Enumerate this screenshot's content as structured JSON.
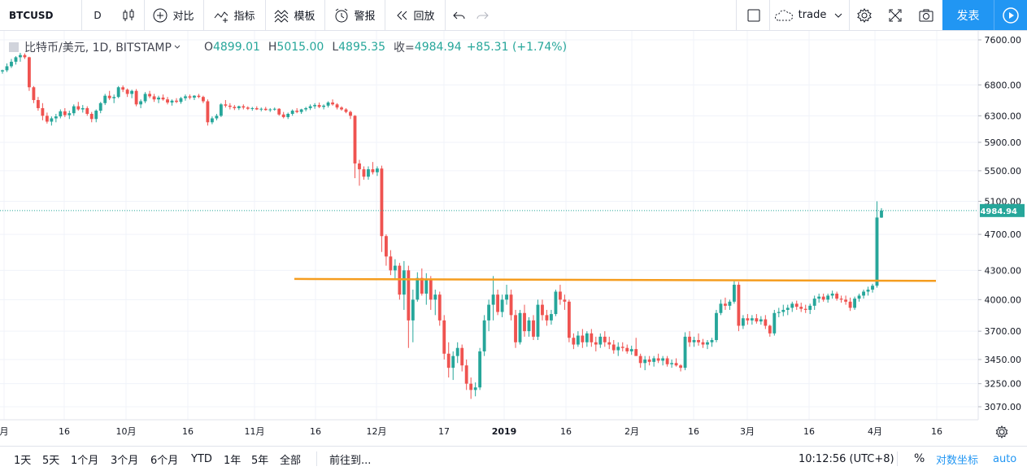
{
  "toolbar": {
    "symbol": "BTCUSD",
    "interval": "D",
    "compare_label": "对比",
    "indicators_label": "指标",
    "templates_label": "模板",
    "alert_label": "警报",
    "replay_label": "回放",
    "layout_name": "trade",
    "publish_label": "发表"
  },
  "legend": {
    "title": "比特币/美元, 1D, BITSTAMP",
    "o_label": "O",
    "o_value": "4899.01",
    "h_label": "H",
    "h_value": "5015.00",
    "l_label": "L",
    "l_value": "4895.35",
    "c_label": "收=",
    "c_value": "4984.94",
    "change": "+85.31 (+1.74%)"
  },
  "colors": {
    "up": "#26a69a",
    "down": "#ef5350",
    "line": "#f59d1f",
    "accent": "#2196f3"
  },
  "chart_data": {
    "type": "candlestick",
    "price_ticks": [
      "7600.00",
      "6800.00",
      "6300.00",
      "5900.00",
      "5500.00",
      "5100.00",
      "4700.00",
      "4300.00",
      "4000.00",
      "3700.00",
      "3450.00",
      "3250.00",
      "3070.00"
    ],
    "last_price": "4984.94",
    "time_ticks": [
      "月",
      "16",
      "10月",
      "16",
      "11月",
      "16",
      "12月",
      "17",
      "2019",
      "16",
      "2月",
      "16",
      "3月",
      "16",
      "4月",
      "16"
    ],
    "horizontal_line": {
      "price_start": 4210,
      "price_end": 4190,
      "color": "#f59d1f"
    },
    "candles": [
      [
        7030,
        7060,
        6990,
        7050
      ],
      [
        7050,
        7170,
        7020,
        7120
      ],
      [
        7120,
        7250,
        7090,
        7200
      ],
      [
        7200,
        7300,
        7150,
        7280
      ],
      [
        7280,
        7360,
        7200,
        7320
      ],
      [
        7320,
        7350,
        7250,
        7280
      ],
      [
        7280,
        7290,
        6700,
        6760
      ],
      [
        6760,
        6780,
        6500,
        6550
      ],
      [
        6550,
        6600,
        6380,
        6420
      ],
      [
        6420,
        6500,
        6230,
        6300
      ],
      [
        6300,
        6350,
        6180,
        6210
      ],
      [
        6210,
        6290,
        6150,
        6260
      ],
      [
        6260,
        6330,
        6200,
        6290
      ],
      [
        6290,
        6400,
        6260,
        6370
      ],
      [
        6370,
        6420,
        6280,
        6310
      ],
      [
        6310,
        6380,
        6250,
        6340
      ],
      [
        6340,
        6480,
        6300,
        6450
      ],
      [
        6450,
        6520,
        6380,
        6400
      ],
      [
        6400,
        6470,
        6350,
        6420
      ],
      [
        6420,
        6450,
        6300,
        6330
      ],
      [
        6330,
        6360,
        6200,
        6250
      ],
      [
        6250,
        6400,
        6200,
        6380
      ],
      [
        6380,
        6520,
        6340,
        6500
      ],
      [
        6500,
        6650,
        6470,
        6620
      ],
      [
        6620,
        6700,
        6550,
        6580
      ],
      [
        6580,
        6640,
        6500,
        6600
      ],
      [
        6600,
        6780,
        6580,
        6760
      ],
      [
        6760,
        6790,
        6680,
        6720
      ],
      [
        6720,
        6740,
        6600,
        6650
      ],
      [
        6650,
        6720,
        6580,
        6700
      ],
      [
        6700,
        6730,
        6450,
        6480
      ],
      [
        6480,
        6560,
        6420,
        6530
      ],
      [
        6530,
        6680,
        6500,
        6650
      ],
      [
        6650,
        6700,
        6580,
        6610
      ],
      [
        6610,
        6650,
        6520,
        6560
      ],
      [
        6560,
        6620,
        6500,
        6590
      ],
      [
        6590,
        6640,
        6540,
        6560
      ],
      [
        6560,
        6600,
        6480,
        6510
      ],
      [
        6510,
        6560,
        6460,
        6540
      ],
      [
        6540,
        6580,
        6500,
        6520
      ],
      [
        6520,
        6600,
        6490,
        6580
      ],
      [
        6580,
        6640,
        6540,
        6610
      ],
      [
        6610,
        6640,
        6560,
        6590
      ],
      [
        6590,
        6630,
        6550,
        6620
      ],
      [
        6620,
        6650,
        6580,
        6600
      ],
      [
        6600,
        6620,
        6500,
        6530
      ],
      [
        6530,
        6560,
        6150,
        6200
      ],
      [
        6200,
        6290,
        6170,
        6260
      ],
      [
        6260,
        6330,
        6230,
        6300
      ],
      [
        6300,
        6500,
        6280,
        6480
      ],
      [
        6480,
        6550,
        6430,
        6460
      ],
      [
        6460,
        6500,
        6400,
        6440
      ],
      [
        6440,
        6470,
        6390,
        6420
      ],
      [
        6420,
        6460,
        6390,
        6450
      ],
      [
        6450,
        6480,
        6400,
        6430
      ],
      [
        6430,
        6450,
        6390,
        6410
      ],
      [
        6410,
        6440,
        6380,
        6420
      ],
      [
        6420,
        6450,
        6390,
        6400
      ],
      [
        6400,
        6430,
        6370,
        6410
      ],
      [
        6410,
        6440,
        6380,
        6390
      ],
      [
        6390,
        6420,
        6360,
        6400
      ],
      [
        6400,
        6430,
        6380,
        6410
      ],
      [
        6410,
        6420,
        6300,
        6320
      ],
      [
        6320,
        6360,
        6260,
        6280
      ],
      [
        6280,
        6350,
        6250,
        6330
      ],
      [
        6330,
        6400,
        6300,
        6380
      ],
      [
        6380,
        6420,
        6340,
        6360
      ],
      [
        6360,
        6410,
        6330,
        6400
      ],
      [
        6400,
        6440,
        6370,
        6420
      ],
      [
        6420,
        6480,
        6390,
        6450
      ],
      [
        6450,
        6500,
        6410,
        6470
      ],
      [
        6470,
        6510,
        6420,
        6440
      ],
      [
        6440,
        6480,
        6400,
        6460
      ],
      [
        6460,
        6530,
        6430,
        6510
      ],
      [
        6510,
        6560,
        6460,
        6480
      ],
      [
        6480,
        6500,
        6400,
        6430
      ],
      [
        6430,
        6450,
        6380,
        6400
      ],
      [
        6400,
        6420,
        6340,
        6360
      ],
      [
        6360,
        6380,
        6250,
        6300
      ],
      [
        6300,
        6310,
        5400,
        5600
      ],
      [
        5600,
        5650,
        5300,
        5520
      ],
      [
        5520,
        5560,
        5380,
        5420
      ],
      [
        5420,
        5560,
        5380,
        5520
      ],
      [
        5520,
        5620,
        5450,
        5480
      ],
      [
        5480,
        5560,
        5430,
        5530
      ],
      [
        5530,
        5570,
        4500,
        4680
      ],
      [
        4680,
        4700,
        4350,
        4450
      ],
      [
        4450,
        4520,
        4250,
        4300
      ],
      [
        4300,
        4420,
        4200,
        4350
      ],
      [
        4350,
        4380,
        4000,
        4050
      ],
      [
        4050,
        4400,
        3900,
        4300
      ],
      [
        4300,
        4350,
        3550,
        3800
      ],
      [
        3800,
        4100,
        3600,
        4000
      ],
      [
        4000,
        4280,
        3980,
        4220
      ],
      [
        4220,
        4320,
        4040,
        4060
      ],
      [
        4060,
        4270,
        3950,
        4200
      ],
      [
        4200,
        4240,
        3900,
        4000
      ],
      [
        4000,
        4100,
        3850,
        4050
      ],
      [
        4050,
        4080,
        3750,
        3800
      ],
      [
        3800,
        3850,
        3450,
        3500
      ],
      [
        3500,
        3600,
        3300,
        3380
      ],
      [
        3380,
        3520,
        3280,
        3480
      ],
      [
        3480,
        3600,
        3420,
        3550
      ],
      [
        3550,
        3580,
        3350,
        3400
      ],
      [
        3400,
        3450,
        3200,
        3250
      ],
      [
        3250,
        3300,
        3130,
        3200
      ],
      [
        3200,
        3260,
        3150,
        3220
      ],
      [
        3220,
        3550,
        3200,
        3520
      ],
      [
        3520,
        3850,
        3480,
        3800
      ],
      [
        3800,
        4000,
        3700,
        3950
      ],
      [
        3950,
        4240,
        3800,
        4050
      ],
      [
        4050,
        4100,
        3850,
        3880
      ],
      [
        3880,
        4050,
        3830,
        4000
      ],
      [
        4000,
        4150,
        3950,
        4050
      ],
      [
        4050,
        4100,
        3800,
        3850
      ],
      [
        3850,
        3900,
        3550,
        3600
      ],
      [
        3600,
        3900,
        3580,
        3870
      ],
      [
        3870,
        3950,
        3650,
        3700
      ],
      [
        3700,
        3830,
        3650,
        3800
      ],
      [
        3800,
        3850,
        3620,
        3650
      ],
      [
        3650,
        4000,
        3620,
        3950
      ],
      [
        3950,
        4000,
        3800,
        3850
      ],
      [
        3850,
        3900,
        3750,
        3800
      ],
      [
        3800,
        3900,
        3760,
        3860
      ],
      [
        3860,
        4100,
        3840,
        4080
      ],
      [
        4080,
        4150,
        3950,
        4000
      ],
      [
        4000,
        4050,
        3900,
        3980
      ],
      [
        3980,
        4000,
        3600,
        3640
      ],
      [
        3640,
        3680,
        3540,
        3580
      ],
      [
        3580,
        3700,
        3560,
        3660
      ],
      [
        3660,
        3720,
        3550,
        3600
      ],
      [
        3600,
        3700,
        3560,
        3680
      ],
      [
        3680,
        3720,
        3560,
        3600
      ],
      [
        3600,
        3650,
        3520,
        3580
      ],
      [
        3580,
        3680,
        3550,
        3650
      ],
      [
        3650,
        3700,
        3560,
        3600
      ],
      [
        3600,
        3650,
        3540,
        3580
      ],
      [
        3580,
        3620,
        3500,
        3530
      ],
      [
        3530,
        3600,
        3480,
        3560
      ],
      [
        3560,
        3600,
        3520,
        3550
      ],
      [
        3550,
        3580,
        3500,
        3520
      ],
      [
        3520,
        3570,
        3490,
        3540
      ],
      [
        3540,
        3640,
        3500,
        3480
      ],
      [
        3480,
        3500,
        3380,
        3420
      ],
      [
        3420,
        3480,
        3360,
        3450
      ],
      [
        3450,
        3480,
        3400,
        3430
      ],
      [
        3430,
        3480,
        3390,
        3460
      ],
      [
        3460,
        3500,
        3420,
        3440
      ],
      [
        3440,
        3480,
        3400,
        3460
      ],
      [
        3460,
        3480,
        3390,
        3410
      ],
      [
        3410,
        3450,
        3380,
        3420
      ],
      [
        3420,
        3460,
        3390,
        3400
      ],
      [
        3400,
        3410,
        3350,
        3380
      ],
      [
        3380,
        3690,
        3360,
        3650
      ],
      [
        3650,
        3700,
        3560,
        3600
      ],
      [
        3600,
        3650,
        3560,
        3620
      ],
      [
        3620,
        3680,
        3570,
        3600
      ],
      [
        3600,
        3630,
        3550,
        3580
      ],
      [
        3580,
        3620,
        3540,
        3600
      ],
      [
        3600,
        3640,
        3560,
        3620
      ],
      [
        3620,
        3900,
        3600,
        3870
      ],
      [
        3870,
        4000,
        3850,
        3960
      ],
      [
        3960,
        4020,
        3900,
        3940
      ],
      [
        3940,
        4000,
        3900,
        3980
      ],
      [
        3980,
        4200,
        3960,
        4150
      ],
      [
        4150,
        4180,
        3700,
        3750
      ],
      [
        3750,
        3850,
        3720,
        3820
      ],
      [
        3820,
        3860,
        3760,
        3800
      ],
      [
        3800,
        3850,
        3760,
        3820
      ],
      [
        3820,
        3860,
        3770,
        3790
      ],
      [
        3790,
        3840,
        3760,
        3810
      ],
      [
        3810,
        3850,
        3720,
        3750
      ],
      [
        3750,
        3760,
        3650,
        3680
      ],
      [
        3680,
        3900,
        3660,
        3870
      ],
      [
        3870,
        3920,
        3830,
        3880
      ],
      [
        3880,
        3950,
        3840,
        3900
      ],
      [
        3900,
        3950,
        3850,
        3920
      ],
      [
        3920,
        3980,
        3880,
        3960
      ],
      [
        3960,
        3990,
        3900,
        3930
      ],
      [
        3930,
        3970,
        3880,
        3910
      ],
      [
        3910,
        3950,
        3870,
        3900
      ],
      [
        3900,
        3960,
        3860,
        3940
      ],
      [
        3940,
        4040,
        3900,
        4010
      ],
      [
        4010,
        4060,
        3970,
        4030
      ],
      [
        4030,
        4060,
        3980,
        4000
      ],
      [
        4000,
        4060,
        3970,
        4040
      ],
      [
        4040,
        4090,
        4010,
        4060
      ],
      [
        4060,
        4080,
        3990,
        4010
      ],
      [
        4010,
        4040,
        3970,
        4000
      ],
      [
        4000,
        4040,
        3950,
        3980
      ],
      [
        3980,
        4020,
        3890,
        3920
      ],
      [
        3920,
        4030,
        3900,
        4010
      ],
      [
        4010,
        4060,
        3980,
        4040
      ],
      [
        4040,
        4100,
        4010,
        4080
      ],
      [
        4080,
        4130,
        4040,
        4100
      ],
      [
        4100,
        4160,
        4070,
        4140
      ],
      [
        4140,
        5100,
        4120,
        4900
      ],
      [
        4899.01,
        5015,
        4895.35,
        4984.94
      ]
    ]
  },
  "bottom": {
    "ranges": [
      "1天",
      "5天",
      "1个月",
      "3个月",
      "6个月",
      "YTD",
      "1年",
      "5年",
      "全部"
    ],
    "goto": "前往到...",
    "clock": "10:12:56 (UTC+8)",
    "percent": "%",
    "log": "对数坐标",
    "auto": "auto"
  }
}
